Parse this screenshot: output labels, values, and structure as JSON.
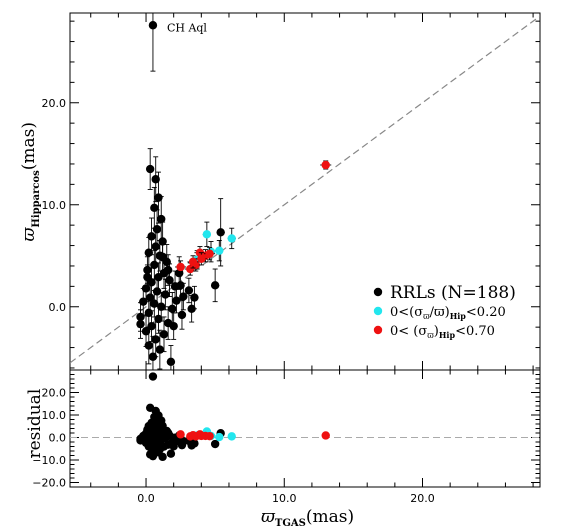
{
  "chart_data": [
    {
      "type": "scatter",
      "panel": "main",
      "xlabel_main": "ϖ",
      "xlabel_sub": "TGAS",
      "xlabel_unit": "(mas)",
      "ylabel_main": "ϖ",
      "ylabel_sub": "Hipparcos",
      "ylabel_unit": "(mas)",
      "xlim": [
        -5.5,
        28.5
      ],
      "ylim": [
        -6.2,
        28.8
      ],
      "x_ticks": [
        "0.0",
        "10.0",
        "20.0"
      ],
      "x_tick_values": [
        0,
        10,
        20
      ],
      "y_ticks": [
        "0.0",
        "10.0",
        "20.0"
      ],
      "y_tick_values": [
        0,
        10,
        20
      ],
      "grid": false,
      "legend_position": "right",
      "annotation": {
        "text": "CH Aql",
        "x": 0.5,
        "y": 27.5
      },
      "reference_line": {
        "style": "dashed",
        "color": "#888888",
        "slope": 1,
        "intercept": 0
      },
      "legend": [
        {
          "label_main": "RRLs (N=188)",
          "color": "#000000"
        },
        {
          "label_main": "0<(σ",
          "label_sub1": "ϖ",
          "label_mid": "/ϖ)",
          "label_sub2": "Hip",
          "label_end": "<0.20",
          "color": "#22e6ee"
        },
        {
          "label_main": "0< (σ",
          "label_sub1": "ϖ",
          "label_mid": ")",
          "label_sub2": "Hip",
          "label_end": "<0.70",
          "color": "#ee1111"
        }
      ],
      "series": [
        {
          "name": "RRLs (N=188)",
          "color": "#000000",
          "points": [
            [
              0.5,
              27.6,
              0.2,
              4.5
            ],
            [
              0.3,
              13.5,
              0.15,
              2.0
            ],
            [
              0.7,
              12.5,
              0.2,
              2.2
            ],
            [
              0.9,
              10.7,
              0.25,
              2.5
            ],
            [
              0.6,
              9.7,
              0.2,
              2.0
            ],
            [
              1.1,
              8.6,
              0.2,
              2.2
            ],
            [
              0.8,
              7.6,
              0.2,
              1.9
            ],
            [
              0.4,
              6.9,
              0.2,
              1.8
            ],
            [
              1.2,
              6.4,
              0.2,
              1.9
            ],
            [
              0.7,
              5.9,
              0.2,
              1.6
            ],
            [
              0.2,
              5.3,
              0.15,
              1.5
            ],
            [
              1.0,
              5.0,
              0.2,
              1.5
            ],
            [
              1.5,
              4.4,
              0.2,
              1.7
            ],
            [
              0.6,
              4.1,
              0.2,
              1.4
            ],
            [
              0.1,
              3.6,
              0.15,
              1.3
            ],
            [
              1.3,
              3.3,
              0.2,
              1.5
            ],
            [
              0.9,
              2.9,
              0.2,
              1.4
            ],
            [
              0.4,
              2.4,
              0.15,
              1.4
            ],
            [
              1.7,
              2.6,
              0.2,
              1.6
            ],
            [
              2.1,
              2.0,
              0.2,
              1.5
            ],
            [
              0.0,
              1.8,
              0.15,
              1.3
            ],
            [
              0.8,
              1.5,
              0.2,
              1.3
            ],
            [
              1.4,
              1.2,
              0.2,
              1.5
            ],
            [
              0.3,
              0.9,
              0.15,
              1.3
            ],
            [
              -0.2,
              0.5,
              0.15,
              1.3
            ],
            [
              0.6,
              0.3,
              0.2,
              1.3
            ],
            [
              1.1,
              0.0,
              0.2,
              1.4
            ],
            [
              1.9,
              -0.2,
              0.2,
              1.6
            ],
            [
              0.2,
              -0.6,
              0.15,
              1.4
            ],
            [
              -0.4,
              -1.0,
              0.15,
              1.4
            ],
            [
              0.9,
              -1.2,
              0.2,
              1.4
            ],
            [
              1.6,
              -1.6,
              0.2,
              1.6
            ],
            [
              0.4,
              -1.9,
              0.15,
              1.5
            ],
            [
              0.0,
              -2.4,
              0.15,
              1.5
            ],
            [
              1.3,
              -2.7,
              0.2,
              1.7
            ],
            [
              0.7,
              -3.2,
              0.2,
              1.7
            ],
            [
              0.2,
              -3.8,
              0.15,
              1.8
            ],
            [
              1.0,
              -4.2,
              0.2,
              1.9
            ],
            [
              0.5,
              -4.9,
              0.2,
              2.0
            ],
            [
              2.5,
              2.1,
              0.2,
              1.4
            ],
            [
              2.7,
              1.0,
              0.2,
              1.3
            ],
            [
              2.2,
              0.6,
              0.2,
              1.2
            ],
            [
              3.1,
              1.6,
              0.2,
              1.2
            ],
            [
              3.5,
              0.9,
              0.2,
              1.1
            ],
            [
              3.3,
              -0.2,
              0.2,
              1.3
            ],
            [
              2.6,
              -0.8,
              0.2,
              1.4
            ],
            [
              2.0,
              -1.9,
              0.2,
              1.3
            ],
            [
              1.8,
              -5.4,
              0.3,
              1.6
            ],
            [
              5.4,
              7.3,
              0.3,
              3.3
            ],
            [
              5.0,
              2.1,
              0.3,
              1.6
            ],
            [
              -0.4,
              -1.7,
              0.15,
              1.4
            ],
            [
              0.1,
              2.9,
              0.15,
              1.2
            ],
            [
              1.2,
              4.9,
              0.2,
              1.5
            ],
            [
              1.6,
              3.6,
              0.2,
              1.5
            ],
            [
              2.4,
              3.3,
              0.2,
              1.6
            ]
          ]
        },
        {
          "name": "0<(σϖ/ϖ)Hip<0.20",
          "color": "#22e6ee",
          "points": [
            [
              4.4,
              7.1,
              0.3,
              1.2
            ],
            [
              6.2,
              6.7,
              0.3,
              1.0
            ],
            [
              4.7,
              5.4,
              0.3,
              1.0
            ],
            [
              3.7,
              4.6,
              0.3,
              0.9
            ],
            [
              5.3,
              5.5,
              0.3,
              1.0
            ]
          ]
        },
        {
          "name": "0< (σϖ)Hip<0.70",
          "color": "#ee1111",
          "points": [
            [
              13.0,
              13.9,
              0.4,
              0.4
            ],
            [
              2.5,
              3.9,
              0.4,
              0.6
            ],
            [
              3.2,
              3.7,
              0.4,
              0.6
            ],
            [
              3.6,
              4.1,
              0.4,
              0.6
            ],
            [
              3.9,
              5.3,
              0.4,
              0.6
            ],
            [
              4.3,
              5.0,
              0.4,
              0.6
            ],
            [
              4.6,
              5.2,
              0.4,
              0.6
            ],
            [
              3.4,
              4.4,
              0.4,
              0.6
            ],
            [
              4.0,
              4.7,
              0.4,
              0.6
            ]
          ]
        }
      ]
    },
    {
      "type": "scatter",
      "panel": "residual",
      "ylabel": "residual",
      "xlim": [
        -5.5,
        28.5
      ],
      "ylim": [
        -22,
        30
      ],
      "x_ticks": [],
      "y_ticks": [
        "20.0",
        "10.0",
        "0.0",
        "−10.0",
        "−20.0"
      ],
      "y_tick_values": [
        20,
        10,
        0,
        -10,
        -20
      ],
      "reference_line": {
        "style": "dashed",
        "color": "#aaaaaa",
        "y": 0
      },
      "series": [
        {
          "name": "RRLs (N=188)",
          "color": "#000000",
          "points": [
            [
              0.5,
              27.1
            ],
            [
              0.3,
              13.2
            ],
            [
              0.7,
              11.8
            ],
            [
              0.9,
              9.8
            ],
            [
              0.6,
              9.1
            ],
            [
              1.1,
              7.5
            ],
            [
              0.8,
              6.8
            ],
            [
              0.4,
              6.5
            ],
            [
              1.2,
              5.2
            ],
            [
              0.7,
              5.2
            ],
            [
              0.2,
              5.1
            ],
            [
              1.0,
              4.0
            ],
            [
              1.5,
              2.9
            ],
            [
              0.6,
              3.5
            ],
            [
              0.1,
              3.5
            ],
            [
              1.3,
              2.0
            ],
            [
              0.9,
              2.0
            ],
            [
              0.4,
              2.0
            ],
            [
              1.7,
              0.9
            ],
            [
              2.1,
              -0.1
            ],
            [
              0.0,
              1.8
            ],
            [
              0.8,
              0.7
            ],
            [
              1.4,
              -0.2
            ],
            [
              0.3,
              0.6
            ],
            [
              -0.2,
              0.7
            ],
            [
              0.6,
              -0.3
            ],
            [
              1.1,
              -1.1
            ],
            [
              1.9,
              -2.1
            ],
            [
              0.2,
              -0.8
            ],
            [
              -0.4,
              -0.6
            ],
            [
              0.9,
              -2.1
            ],
            [
              1.6,
              -3.2
            ],
            [
              0.4,
              -2.3
            ],
            [
              0.0,
              -2.4
            ],
            [
              1.3,
              -4.0
            ],
            [
              0.7,
              -3.9
            ],
            [
              0.2,
              -4.0
            ],
            [
              1.0,
              -5.2
            ],
            [
              0.5,
              -5.4
            ],
            [
              2.5,
              -0.4
            ],
            [
              2.7,
              -1.7
            ],
            [
              2.2,
              -1.6
            ],
            [
              3.1,
              -1.5
            ],
            [
              3.5,
              -2.6
            ],
            [
              3.3,
              -3.5
            ],
            [
              2.6,
              -3.4
            ],
            [
              2.0,
              -3.9
            ],
            [
              1.8,
              -7.2
            ],
            [
              5.4,
              1.9
            ],
            [
              5.0,
              -2.9
            ],
            [
              -0.4,
              -1.3
            ],
            [
              0.1,
              2.8
            ],
            [
              1.2,
              3.7
            ],
            [
              1.6,
              2.0
            ],
            [
              2.4,
              0.9
            ],
            [
              0.5,
              -8.3
            ],
            [
              0.3,
              -7.5
            ],
            [
              0.9,
              -6.6
            ],
            [
              0.6,
              -6.9
            ],
            [
              1.2,
              -8.6
            ]
          ]
        },
        {
          "name": "0<(σϖ/ϖ)Hip<0.20",
          "color": "#22e6ee",
          "points": [
            [
              4.4,
              2.7
            ],
            [
              6.2,
              0.5
            ],
            [
              4.7,
              0.7
            ],
            [
              3.7,
              0.9
            ],
            [
              5.3,
              0.2
            ]
          ]
        },
        {
          "name": "0< (σϖ)Hip<0.70",
          "color": "#ee1111",
          "points": [
            [
              13.0,
              0.9
            ],
            [
              2.5,
              1.4
            ],
            [
              3.2,
              0.5
            ],
            [
              3.6,
              0.5
            ],
            [
              3.9,
              1.4
            ],
            [
              4.3,
              0.7
            ],
            [
              4.6,
              0.6
            ],
            [
              3.4,
              1.0
            ],
            [
              4.0,
              0.7
            ]
          ]
        }
      ]
    }
  ]
}
